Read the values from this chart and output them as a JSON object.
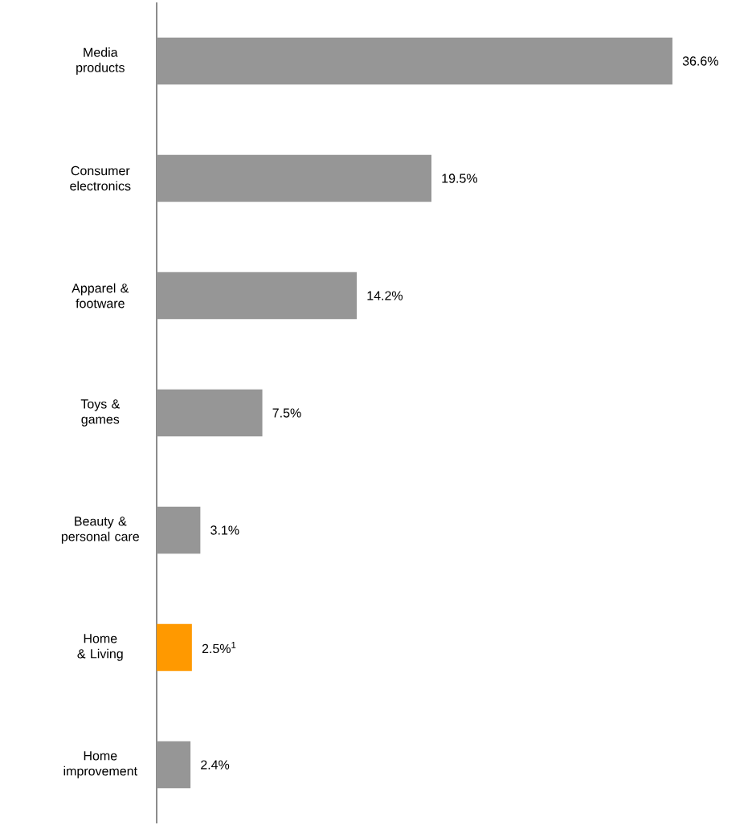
{
  "chart_data": {
    "type": "bar",
    "orientation": "horizontal",
    "categories": [
      "Media products",
      "Consumer electronics",
      "Apparel & footware",
      "Toys & games",
      "Beauty & personal care",
      "Home & Living",
      "Home improvement"
    ],
    "values": [
      36.6,
      19.5,
      14.2,
      7.5,
      3.1,
      2.5,
      2.4
    ],
    "colors": [
      "#969696",
      "#969696",
      "#969696",
      "#969696",
      "#969696",
      "#ff9900",
      "#969696"
    ],
    "value_labels": [
      "36.6%",
      "19.5%",
      "14.2%",
      "7.5%",
      "3.1%",
      "2.5%$^{1}$",
      "2.4%"
    ]
  }
}
